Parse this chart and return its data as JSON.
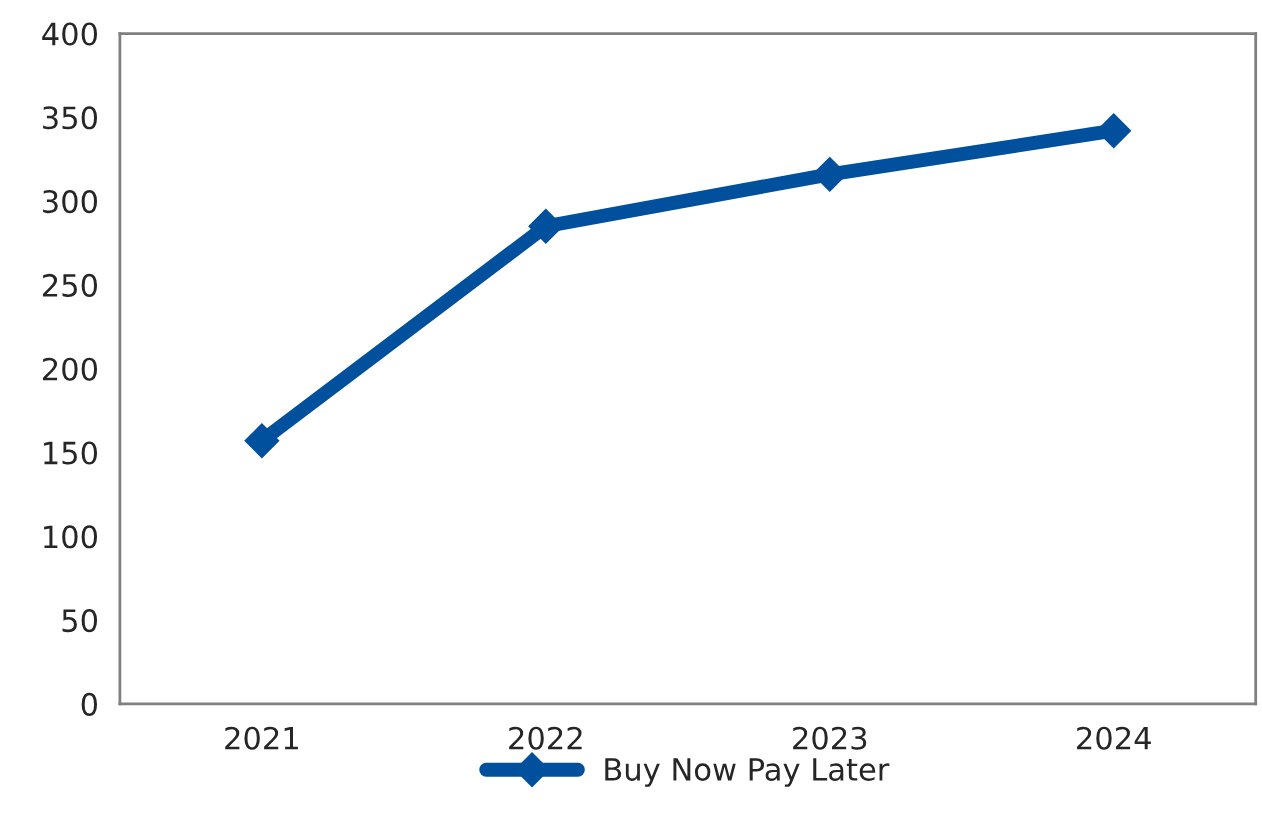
{
  "chart_data": {
    "type": "line",
    "categories": [
      "2021",
      "2022",
      "2023",
      "2024"
    ],
    "series": [
      {
        "name": "Buy Now Pay Later",
        "color": "#00509e",
        "values": [
          157,
          285,
          316,
          342
        ]
      }
    ],
    "ylim": [
      0,
      400
    ],
    "yticks": [
      0,
      50,
      100,
      150,
      200,
      250,
      300,
      350,
      400
    ],
    "grid": false,
    "legend": "bottom",
    "marker": "diamond",
    "line_style": "solid"
  }
}
